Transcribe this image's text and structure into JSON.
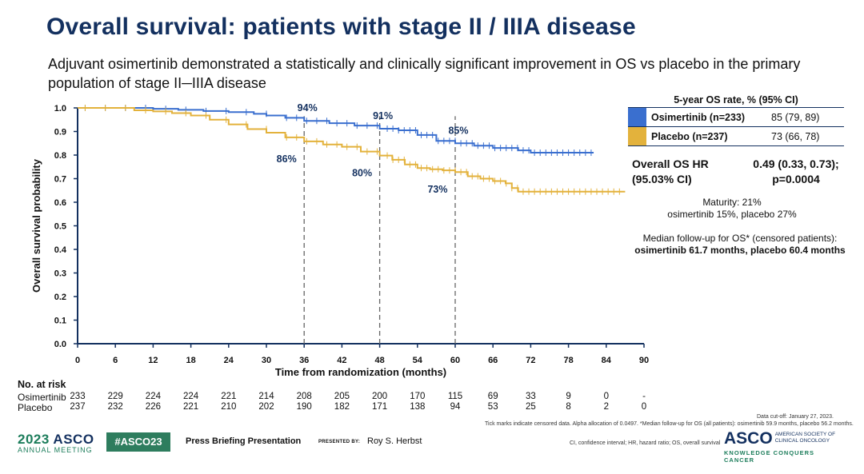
{
  "slide": {
    "title": "Overall survival: patients with stage II / IIIA disease",
    "subtitle": "Adjuvant osimertinib demonstrated a statistically and clinically significant improvement in OS vs placebo in the primary population of stage II─IIIA disease"
  },
  "chart_data": {
    "type": "line",
    "subtype": "kaplan-meier",
    "xlabel": "Time from randomization (months)",
    "ylabel": "Overall survival probability",
    "xlim": [
      0,
      90
    ],
    "ylim": [
      0,
      1
    ],
    "xticks": [
      0,
      6,
      12,
      18,
      24,
      30,
      36,
      42,
      48,
      54,
      60,
      66,
      72,
      78,
      84,
      90
    ],
    "yticks": [
      "0.0",
      "0.1",
      "0.2",
      "0.3",
      "0.4",
      "0.5",
      "0.6",
      "0.7",
      "0.8",
      "0.9",
      "1.0"
    ],
    "grid": false,
    "reference_lines_x": [
      36,
      48,
      60
    ],
    "series": [
      {
        "name": "Osimertinib (n=233)",
        "color": "#3a6fcf",
        "x": [
          0,
          6,
          12,
          16,
          20,
          24,
          28,
          30,
          33,
          36,
          40,
          44,
          48,
          51,
          54,
          57,
          60,
          63,
          66,
          70,
          72,
          76,
          82
        ],
        "y": [
          1.0,
          1.0,
          0.996,
          0.992,
          0.987,
          0.982,
          0.975,
          0.968,
          0.958,
          0.945,
          0.935,
          0.925,
          0.912,
          0.905,
          0.885,
          0.86,
          0.85,
          0.84,
          0.83,
          0.82,
          0.81,
          0.81,
          0.81
        ],
        "point_labels": [
          {
            "x": 36,
            "text": "94%"
          },
          {
            "x": 48,
            "text": "91%"
          },
          {
            "x": 60,
            "text": "85%"
          }
        ]
      },
      {
        "name": "Placebo (n=237)",
        "color": "#e3b23c",
        "x": [
          0,
          6,
          9,
          12,
          15,
          18,
          21,
          24,
          27,
          30,
          33,
          36,
          39,
          42,
          45,
          48,
          50,
          52,
          54,
          56,
          58,
          60,
          62,
          64,
          66,
          68,
          69,
          70,
          72,
          78,
          84,
          87
        ],
        "y": [
          1.0,
          1.0,
          0.99,
          0.985,
          0.978,
          0.968,
          0.95,
          0.93,
          0.91,
          0.895,
          0.875,
          0.858,
          0.845,
          0.835,
          0.815,
          0.798,
          0.78,
          0.76,
          0.745,
          0.74,
          0.735,
          0.728,
          0.71,
          0.7,
          0.69,
          0.68,
          0.66,
          0.645,
          0.645,
          0.645,
          0.645,
          0.645
        ],
        "point_labels": [
          {
            "x": 36,
            "text": "86%"
          },
          {
            "x": 48,
            "text": "80%"
          },
          {
            "x": 60,
            "text": "73%"
          }
        ]
      }
    ],
    "risk_table": {
      "title": "No. at risk",
      "rows": [
        {
          "label": "Osimertinib",
          "values": [
            "233",
            "229",
            "224",
            "224",
            "221",
            "214",
            "208",
            "205",
            "200",
            "170",
            "115",
            "69",
            "33",
            "9",
            "0",
            "-"
          ]
        },
        {
          "label": "Placebo",
          "values": [
            "237",
            "232",
            "226",
            "221",
            "210",
            "202",
            "190",
            "182",
            "171",
            "138",
            "94",
            "53",
            "25",
            "8",
            "2",
            "0"
          ]
        }
      ]
    }
  },
  "legend": {
    "header": "5-year OS rate, % (95% CI)",
    "rows": [
      {
        "name": "Osimertinib (n=233)",
        "value": "85 (79, 89)",
        "color": "#3a6fcf"
      },
      {
        "name": "Placebo (n=237)",
        "value": "73 (66, 78)",
        "color": "#e3b23c"
      }
    ]
  },
  "hr": {
    "label_line1": "Overall OS HR",
    "label_line2": "(95.03% CI)",
    "value_line1": "0.49 (0.33, 0.73);",
    "value_line2": "p=0.0004"
  },
  "maturity": {
    "line1": "Maturity: 21%",
    "line2": "osimertinib 15%, placebo 27%"
  },
  "median": {
    "line1": "Median follow-up for OS* (censored patients):",
    "line2": "osimertinib 61.7 months, placebo 60.4 months"
  },
  "footnotes": {
    "cutoff": "Data cut-off: January 27, 2023.",
    "ticks": "Tick marks indicate censored data. Alpha allocation of 0.0497. *Median follow-up for OS (all patients): osimertinib 59.9 months, placebo 56.2 months.",
    "abbrev": "CI, confidence interval; HR, hazard ratio; OS, overall survival"
  },
  "footer": {
    "year": "2023",
    "asco": "ASCO",
    "meeting": "ANNUAL MEETING",
    "hashtag": "#ASCO23",
    "press": "Press Briefing Presentation",
    "presented_by": "PRESENTED BY:",
    "presenter": "Roy S. Herbst",
    "logo": "ASCO",
    "society_line1": "AMERICAN SOCIETY OF",
    "society_line2": "CLINICAL ONCOLOGY",
    "tagline": "KNOWLEDGE CONQUERS CANCER"
  }
}
